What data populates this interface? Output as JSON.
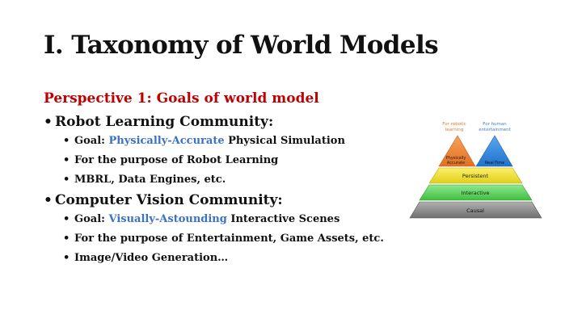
{
  "title": "I. Taxonomy of World Models",
  "subtitle": "Perspective 1: Goals of world model",
  "bullet_glyph": "•",
  "groups": [
    {
      "heading": "Robot Learning Community:",
      "items": [
        {
          "prefix": "Goal: ",
          "highlight": "Physically-Accurate",
          "suffix": " Physical Simulation"
        },
        {
          "text": "For the purpose of Robot Learning"
        },
        {
          "text": "MBRL, Data Engines, etc."
        }
      ]
    },
    {
      "heading": "Computer Vision Community:",
      "items": [
        {
          "prefix": "Goal: ",
          "highlight": "Visually-Astounding",
          "suffix": " Interactive Scenes"
        },
        {
          "text": "For the purpose of Entertainment, Game Assets, etc."
        },
        {
          "text": "Image/Video Generation…"
        }
      ]
    }
  ],
  "pyramid": {
    "label_left_line1": "For robotic",
    "label_left_line2": "learning",
    "label_right_line1": "For human",
    "label_right_line2": "entertainment",
    "peak_left_line1": "Physically",
    "peak_left_line2": "Accurate",
    "peak_right": "Real-Time",
    "tier_persistent": "Persistent",
    "tier_interactive": "Interactive",
    "tier_causal": "Causal"
  },
  "colors": {
    "title": "#111111",
    "subtitle": "#c00000",
    "highlight": "#3b72c8",
    "peak_left": "#f08a3c",
    "peak_right": "#3a8fe0",
    "persistent": "#f2e33a",
    "interactive": "#5fd35f",
    "causal": "#8c8c8c",
    "label_left": "#e0782a",
    "label_right": "#3a7fd0"
  }
}
